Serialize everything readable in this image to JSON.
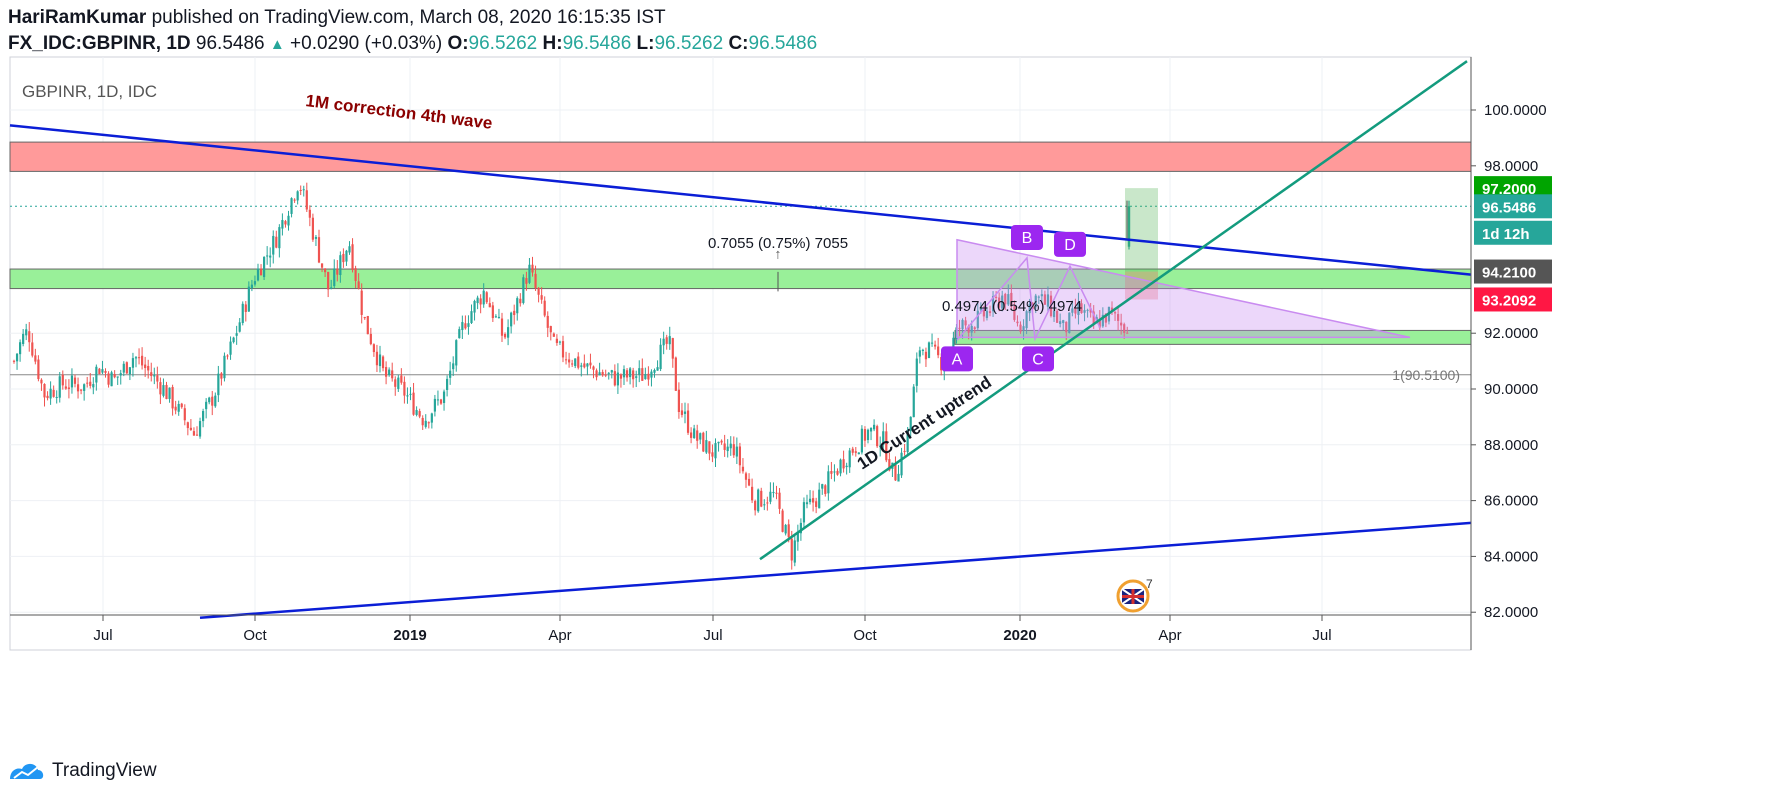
{
  "header": {
    "author": "HariRamKumar",
    "published_text": "published on TradingView.com, March 08, 2020 16:15:35 IST",
    "symbol": "FX_IDC:GBPINR, 1D",
    "last": "96.5486",
    "change": "+0.0290 (+0.03%)",
    "o_label": "O:",
    "o": "96.5262",
    "h_label": "H:",
    "h": "96.5486",
    "l_label": "L:",
    "l": "96.5262",
    "c_label": "C:",
    "c": "96.5486"
  },
  "footer": {
    "brand": "TradingView"
  },
  "colors": {
    "up": "#26a69a",
    "down": "#ef5350",
    "blue_line": "#0b1ed6",
    "trend": "#139b7e",
    "red_zone": "#ff9a9a",
    "green_zone": "#99f099",
    "pattern": "#c98bf0",
    "label_purple": "#9c27f0"
  },
  "chart_data": {
    "type": "candlestick",
    "title": "GBPINR, 1D, IDC",
    "x_ticks": [
      "Jul",
      "Oct",
      "2019",
      "Apr",
      "Jul",
      "Oct",
      "2020",
      "Apr",
      "Jul"
    ],
    "y_ticks": [
      "100.0000",
      "98.0000",
      "92.0000",
      "90.0000",
      "88.0000",
      "86.0000",
      "84.0000",
      "82.0000"
    ],
    "ylim": [
      81.9,
      101.9
    ],
    "price_badges": [
      {
        "text": "97.2000",
        "value": 97.2,
        "color": "#00a400"
      },
      {
        "text": "96.5486",
        "value": 96.5486,
        "color": "#26a69a"
      },
      {
        "text": "1d 12h",
        "value": 95.6,
        "color": "#26a69a"
      },
      {
        "text": "94.2100",
        "value": 94.21,
        "color": "#555555"
      },
      {
        "text": "93.2092",
        "value": 93.2092,
        "color": "#ff1744"
      }
    ],
    "zones": [
      {
        "name": "red",
        "from": 97.8,
        "to": 98.85
      },
      {
        "name": "green-upper",
        "from": 93.6,
        "to": 94.3
      },
      {
        "name": "green-lower",
        "from": 91.6,
        "to": 92.1
      }
    ],
    "annotations": {
      "wave_text": "1M correction 4th wave",
      "uptrend_text": "1D Current uptrend",
      "measure1": "0.7055 (0.75%) 7055",
      "measure2": "0.4974 (0.54%) 4974",
      "fib_level": "1(90.5100)",
      "labels": [
        "A",
        "B",
        "C",
        "D"
      ],
      "event_count": "7"
    },
    "candles_anchor": [
      [
        0,
        91.0
      ],
      [
        8,
        91.8
      ],
      [
        14,
        92.1
      ],
      [
        30,
        89.8
      ],
      [
        50,
        90.2
      ],
      [
        70,
        90.1
      ],
      [
        85,
        90.8
      ],
      [
        100,
        90.3
      ],
      [
        120,
        91.2
      ],
      [
        150,
        90.0
      ],
      [
        180,
        88.4
      ],
      [
        200,
        89.8
      ],
      [
        220,
        91.8
      ],
      [
        240,
        94.0
      ],
      [
        262,
        95.4
      ],
      [
        285,
        97.5
      ],
      [
        300,
        95.5
      ],
      [
        315,
        93.5
      ],
      [
        335,
        95.3
      ],
      [
        350,
        92.5
      ],
      [
        370,
        90.5
      ],
      [
        390,
        89.9
      ],
      [
        410,
        88.9
      ],
      [
        430,
        89.8
      ],
      [
        450,
        92.4
      ],
      [
        470,
        93.5
      ],
      [
        490,
        91.8
      ],
      [
        515,
        94.3
      ],
      [
        540,
        91.5
      ],
      [
        570,
        90.8
      ],
      [
        600,
        90.4
      ],
      [
        630,
        90.5
      ],
      [
        655,
        91.7
      ],
      [
        665,
        89.4
      ],
      [
        680,
        88.3
      ],
      [
        700,
        87.7
      ],
      [
        720,
        87.9
      ],
      [
        740,
        86.0
      ],
      [
        760,
        86.2
      ],
      [
        778,
        84.1
      ],
      [
        790,
        85.6
      ],
      [
        805,
        86.2
      ],
      [
        830,
        87.5
      ],
      [
        855,
        88.5
      ],
      [
        870,
        88.1
      ],
      [
        880,
        86.8
      ],
      [
        895,
        88.5
      ],
      [
        905,
        91.5
      ],
      [
        915,
        91.4
      ],
      [
        930,
        90.9
      ],
      [
        945,
        92.2
      ],
      [
        960,
        92.4
      ],
      [
        975,
        92.8
      ],
      [
        990,
        93.4
      ],
      [
        1005,
        92.2
      ],
      [
        1020,
        93.3
      ],
      [
        1035,
        93.0
      ],
      [
        1050,
        92.1
      ],
      [
        1065,
        92.9
      ],
      [
        1080,
        92.3
      ],
      [
        1095,
        92.7
      ],
      [
        1110,
        92.2
      ],
      [
        1120,
        92.7
      ],
      [
        1128,
        95.2
      ],
      [
        1132,
        96.55
      ]
    ]
  }
}
